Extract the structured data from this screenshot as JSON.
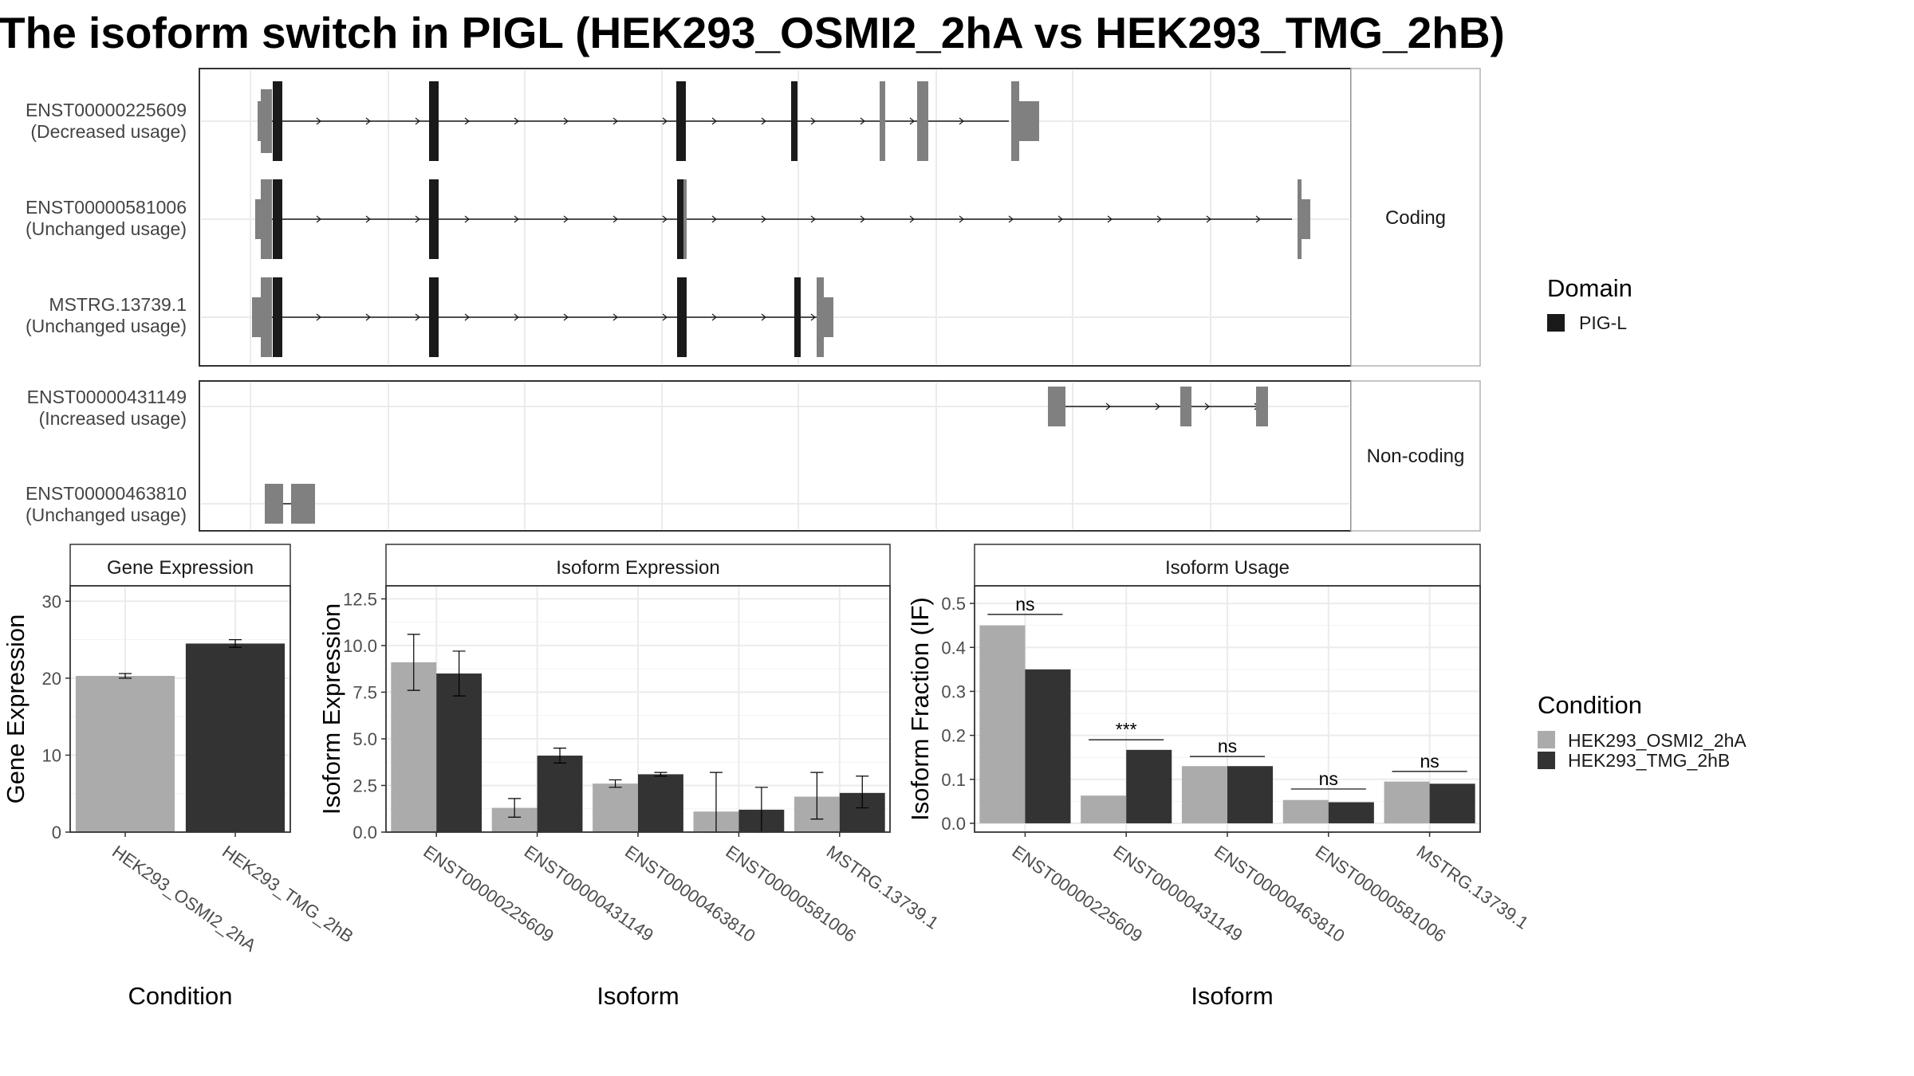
{
  "title": "The isoform switch in PIGL (HEK293_OSMI2_2hA vs HEK293_TMG_2hB)",
  "colors": {
    "domain": "#1a1a1a",
    "exon": "#808080",
    "cond_a": "#ababab",
    "cond_b": "#333333",
    "grid": "#ebebeb",
    "panel_border": "#333333"
  },
  "structure": {
    "facets": [
      {
        "label": "Coding"
      },
      {
        "label": "Non-coding"
      }
    ],
    "transcripts": [
      {
        "id": "ENST00000225609",
        "status": "(Decreased usage)"
      },
      {
        "id": "ENST00000581006",
        "status": "(Unchanged usage)"
      },
      {
        "id": "MSTRG.13739.1",
        "status": "(Unchanged usage)"
      },
      {
        "id": "ENST00000431149",
        "status": "(Increased usage)"
      },
      {
        "id": "ENST00000463810",
        "status": "(Unchanged usage)"
      }
    ],
    "legend": {
      "title": "Domain",
      "items": [
        {
          "label": "PIG-L",
          "color": "#1a1a1a"
        }
      ]
    }
  },
  "condition_legend": {
    "title": "Condition",
    "items": [
      {
        "label": "HEK293_OSMI2_2hA",
        "color": "#ababab"
      },
      {
        "label": "HEK293_TMG_2hB",
        "color": "#333333"
      }
    ]
  },
  "chart_data": [
    {
      "type": "bar",
      "title": "Gene Expression",
      "xlabel": "Condition",
      "ylabel": "Gene Expression",
      "categories": [
        "HEK293_OSMI2_2hA",
        "HEK293_TMG_2hB"
      ],
      "values": [
        20.3,
        24.5
      ],
      "errors": [
        [
          20.0,
          20.6
        ],
        [
          24.0,
          25.0
        ]
      ],
      "ylim": [
        0,
        32
      ],
      "yticks": [
        0,
        10,
        20,
        30
      ],
      "ytick_labels": [
        "0",
        "10",
        "20",
        "30"
      ]
    },
    {
      "type": "bar",
      "title": "Isoform Expression",
      "xlabel": "Isoform",
      "ylabel": "Isoform Expression",
      "categories": [
        "ENST00000225609",
        "ENST00000431149",
        "ENST00000463810",
        "ENST00000581006",
        "MSTRG.13739.1"
      ],
      "series": [
        {
          "name": "HEK293_OSMI2_2hA",
          "values": [
            9.1,
            1.3,
            2.6,
            1.1,
            1.9
          ],
          "errors": [
            [
              7.6,
              10.6
            ],
            [
              0.8,
              1.8
            ],
            [
              2.4,
              2.8
            ],
            [
              0.0,
              3.2
            ],
            [
              0.7,
              3.2
            ]
          ]
        },
        {
          "name": "HEK293_TMG_2hB",
          "values": [
            8.5,
            4.1,
            3.1,
            1.2,
            2.1
          ],
          "errors": [
            [
              7.3,
              9.7
            ],
            [
              3.7,
              4.5
            ],
            [
              3.0,
              3.2
            ],
            [
              0.0,
              2.4
            ],
            [
              1.3,
              3.0
            ]
          ]
        }
      ],
      "ylim": [
        0,
        13.2
      ],
      "yticks": [
        0,
        2.5,
        5,
        7.5,
        10,
        12.5
      ],
      "ytick_labels": [
        "0.0",
        "2.5",
        "5.0",
        "7.5",
        "10.0",
        "12.5"
      ]
    },
    {
      "type": "bar",
      "title": "Isoform Usage",
      "xlabel": "Isoform",
      "ylabel": "Isoform Fraction (IF)",
      "categories": [
        "ENST00000225609",
        "ENST00000431149",
        "ENST00000463810",
        "ENST00000581006",
        "MSTRG.13739.1"
      ],
      "series": [
        {
          "name": "HEK293_OSMI2_2hA",
          "values": [
            0.45,
            0.063,
            0.13,
            0.053,
            0.095
          ]
        },
        {
          "name": "HEK293_TMG_2hB",
          "values": [
            0.35,
            0.167,
            0.13,
            0.048,
            0.09
          ]
        }
      ],
      "significance": [
        {
          "label": "ns",
          "y": 0.475
        },
        {
          "label": "***",
          "y": 0.19
        },
        {
          "label": "ns",
          "y": 0.152
        },
        {
          "label": "ns",
          "y": 0.078
        },
        {
          "label": "ns",
          "y": 0.118
        }
      ],
      "ylim": [
        -0.02,
        0.54
      ],
      "yticks": [
        0,
        0.1,
        0.2,
        0.3,
        0.4,
        0.5
      ],
      "ytick_labels": [
        "0.0",
        "0.1",
        "0.2",
        "0.3",
        "0.4",
        "0.5"
      ]
    }
  ]
}
